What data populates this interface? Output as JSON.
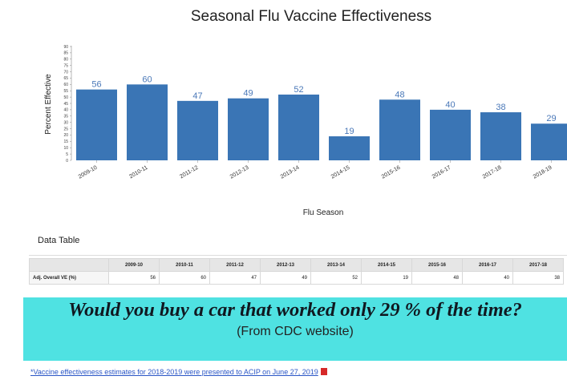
{
  "chart_data": {
    "type": "bar",
    "title": "Seasonal Flu Vaccine Effectiveness",
    "xlabel": "Flu Season",
    "ylabel": "Percent Effective",
    "categories": [
      "2009-10",
      "2010-11",
      "2011-12",
      "2012-13",
      "2013-14",
      "2014-15",
      "2015-16",
      "2016-17",
      "2017-18",
      "2018-19"
    ],
    "values": [
      56,
      60,
      47,
      49,
      52,
      19,
      48,
      40,
      38,
      29
    ],
    "data_labels": [
      "56",
      "60",
      "47",
      "49",
      "52",
      "19",
      "48",
      "40",
      "38",
      "29"
    ],
    "ylim": [
      0,
      90
    ],
    "yticks": [
      0,
      5,
      10,
      15,
      20,
      25,
      30,
      35,
      40,
      45,
      50,
      55,
      60,
      65,
      70,
      75,
      80,
      85,
      90
    ],
    "bar_color": "#3a75b5",
    "label_color": "#4a78b8",
    "grid": false,
    "legend": "none"
  },
  "data_table": {
    "heading": "Data Table",
    "columns": [
      "2009-10",
      "2010-11",
      "2011-12",
      "2012-13",
      "2013-14",
      "2014-15",
      "2015-16",
      "2016-17",
      "2017-18"
    ],
    "row_label": "Adj. Overall VE (%)",
    "row_values": [
      "56",
      "60",
      "47",
      "49",
      "52",
      "19",
      "48",
      "40",
      "38"
    ]
  },
  "callout": {
    "headline": "Would you buy a car that worked only 29 % of the time?",
    "subtext": "(From CDC website)",
    "background": "#4fe2e2"
  },
  "footnote": {
    "text": "*Vaccine effectiveness estimates for 2018-2019 were presented to ACIP on June 27, 2019",
    "icon": "pdf-icon"
  }
}
